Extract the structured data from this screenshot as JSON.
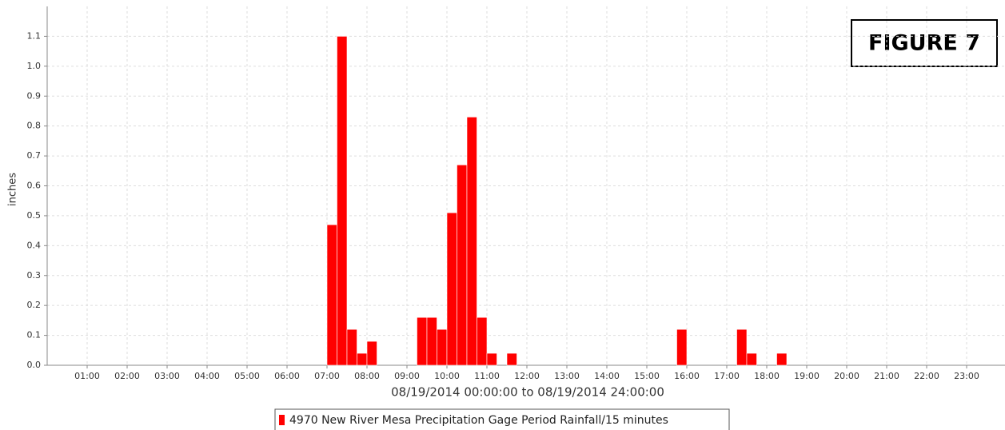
{
  "chart_data": {
    "type": "bar",
    "annotation": "FIGURE 7",
    "xlabel": "08/19/2014 00:00:00 to 08/19/2014 24:00:00",
    "ylabel": "inches",
    "series": [
      {
        "name": "4970 New River Mesa Precipitation Gage Period Rainfall/15 minutes",
        "color": "#ff0000",
        "x": [
          7,
          7.25,
          7.5,
          7.75,
          8,
          9.25,
          9.5,
          9.75,
          10,
          10.25,
          10.5,
          10.75,
          11,
          11.5,
          15.75,
          17.25,
          17.5,
          18.25
        ],
        "values": [
          0.47,
          1.1,
          0.12,
          0.04,
          0.08,
          0.16,
          0.16,
          0.12,
          0.51,
          0.67,
          0.83,
          0.16,
          0.04,
          0.04,
          0.12,
          0.12,
          0.04,
          0.04
        ]
      }
    ],
    "xlim": [
      0,
      24
    ],
    "xticks": [
      {
        "value": 1,
        "label": "01:00"
      },
      {
        "value": 2,
        "label": "02:00"
      },
      {
        "value": 3,
        "label": "03:00"
      },
      {
        "value": 4,
        "label": "04:00"
      },
      {
        "value": 5,
        "label": "05:00"
      },
      {
        "value": 6,
        "label": "06:00"
      },
      {
        "value": 7,
        "label": "07:00"
      },
      {
        "value": 8,
        "label": "08:00"
      },
      {
        "value": 9,
        "label": "09:00"
      },
      {
        "value": 10,
        "label": "10:00"
      },
      {
        "value": 11,
        "label": "11:00"
      },
      {
        "value": 12,
        "label": "12:00"
      },
      {
        "value": 13,
        "label": "13:00"
      },
      {
        "value": 14,
        "label": "14:00"
      },
      {
        "value": 15,
        "label": "15:00"
      },
      {
        "value": 16,
        "label": "16:00"
      },
      {
        "value": 17,
        "label": "17:00"
      },
      {
        "value": 18,
        "label": "18:00"
      },
      {
        "value": 19,
        "label": "19:00"
      },
      {
        "value": 20,
        "label": "20:00"
      },
      {
        "value": 21,
        "label": "21:00"
      },
      {
        "value": 22,
        "label": "22:00"
      },
      {
        "value": 23,
        "label": "23:00"
      }
    ],
    "ylim": [
      0,
      1.2
    ],
    "yticks": [
      {
        "value": 0,
        "label": "0.0"
      },
      0.1,
      0.2,
      0.3,
      0.4,
      0.5,
      0.6,
      0.7,
      0.8,
      0.9,
      {
        "value": 1,
        "label": "1.0"
      },
      1.1
    ],
    "grid": true
  }
}
